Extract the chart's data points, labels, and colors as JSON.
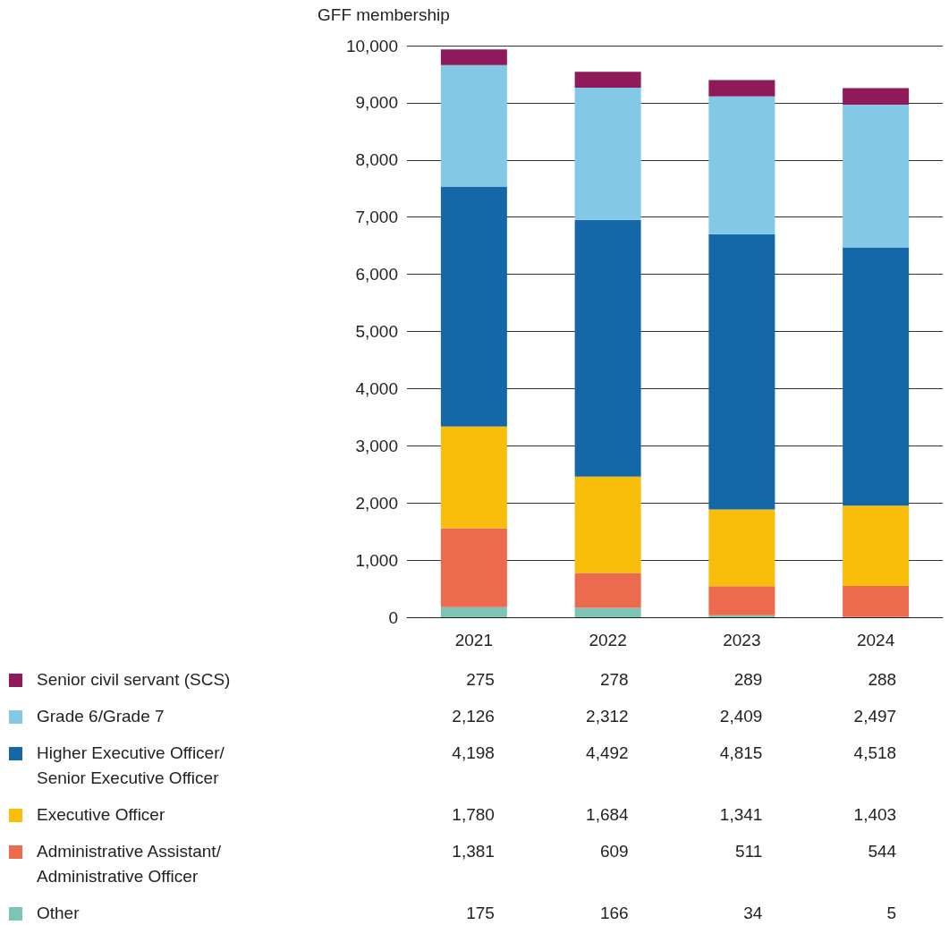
{
  "chart_data": {
    "type": "bar",
    "ylabel": "GFF membership",
    "categories": [
      "2021",
      "2022",
      "2023",
      "2024"
    ],
    "stacked": true,
    "series": [
      {
        "name": "Other",
        "color": "#7cc5b6",
        "values": [
          175,
          166,
          34,
          5
        ],
        "value_labels": [
          "175",
          "166",
          "34",
          "5"
        ]
      },
      {
        "name": "Administrative Assistant/ Administrative Officer",
        "color": "#ec6b4e",
        "values": [
          1381,
          609,
          511,
          544
        ],
        "value_labels": [
          "1,381",
          "609",
          "511",
          "544"
        ]
      },
      {
        "name": "Executive Officer",
        "color": "#f8be0a",
        "values": [
          1780,
          1684,
          1341,
          1403
        ],
        "value_labels": [
          "1,780",
          "1,684",
          "1,341",
          "1,403"
        ]
      },
      {
        "name": "Higher Executive Officer/ Senior Executive Officer",
        "color": "#1468a8",
        "values": [
          4198,
          4492,
          4815,
          4518
        ],
        "value_labels": [
          "4,198",
          "4,492",
          "4,815",
          "4,518"
        ]
      },
      {
        "name": "Grade 6/Grade 7",
        "color": "#84c8e8",
        "values": [
          2126,
          2312,
          2409,
          2497
        ],
        "value_labels": [
          "2,126",
          "2,312",
          "2,409",
          "2,497"
        ]
      },
      {
        "name": "Senior civil servant (SCS)",
        "color": "#8e1a5a",
        "values": [
          275,
          278,
          289,
          288
        ],
        "value_labels": [
          "275",
          "278",
          "289",
          "288"
        ]
      }
    ],
    "ylim": [
      0,
      10000
    ],
    "yticks": [
      0,
      {
        "value": 1000,
        "label": "1,000"
      },
      {
        "value": 2000,
        "label": "2,000"
      },
      {
        "value": 3000,
        "label": "3,000"
      },
      {
        "value": 4000,
        "label": "4,000"
      },
      {
        "value": 5000,
        "label": "5,000"
      },
      {
        "value": 6000,
        "label": "6,000"
      },
      {
        "value": 7000,
        "label": "7,000"
      },
      {
        "value": 8000,
        "label": "8,000"
      },
      {
        "value": 9000,
        "label": "9,000"
      },
      {
        "value": 10000,
        "label": "10,000"
      }
    ],
    "grid": "y",
    "legend": "bottom"
  }
}
